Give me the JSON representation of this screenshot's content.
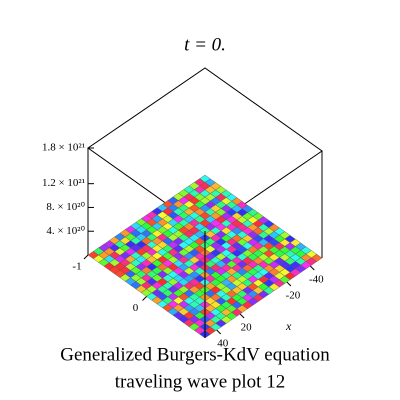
{
  "chart_data": {
    "type": "surface3d",
    "title": "t = 0.",
    "caption": [
      "Generalized Burgers-KdV equation",
      "traveling wave plot 12"
    ],
    "xlabel": "x",
    "xlim": [
      -50,
      50
    ],
    "xticks": [
      -40,
      -20,
      20,
      40
    ],
    "ylim": [
      -1,
      1
    ],
    "yticks": [
      -1,
      0
    ],
    "zlim": [
      0,
      1.8e+21
    ],
    "zticks": [
      {
        "value": 4e+20,
        "label": "4. × 10²⁰"
      },
      {
        "value": 8e+20,
        "label": "8. × 10²⁰"
      },
      {
        "value": 1.2e+21,
        "label": "1.2 × 10²¹"
      },
      {
        "value": 1.8e+21,
        "label": "1.8 × 10²¹"
      }
    ],
    "z": 0
  }
}
